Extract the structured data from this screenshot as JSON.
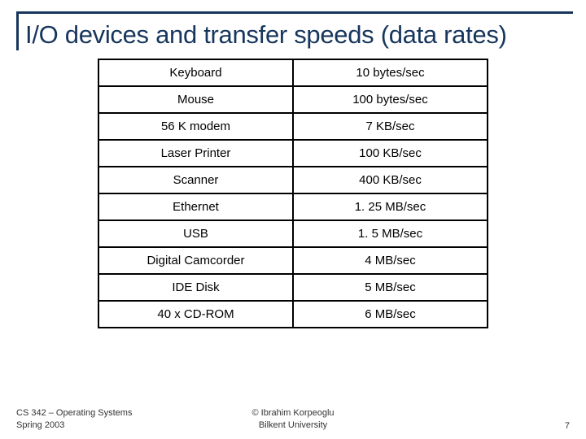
{
  "title": "I/O devices and transfer speeds (data rates)",
  "table": {
    "rows": [
      [
        "Keyboard",
        "10 bytes/sec"
      ],
      [
        "Mouse",
        "100 bytes/sec"
      ],
      [
        "56 K modem",
        "7 KB/sec"
      ],
      [
        "Laser Printer",
        "100 KB/sec"
      ],
      [
        "Scanner",
        "400 KB/sec"
      ],
      [
        "Ethernet",
        "1. 25 MB/sec"
      ],
      [
        "USB",
        "1. 5 MB/sec"
      ],
      [
        "Digital Camcorder",
        "4 MB/sec"
      ],
      [
        "IDE Disk",
        "5 MB/sec"
      ],
      [
        "40 x CD-ROM",
        "6 MB/sec"
      ]
    ],
    "border_color": "#000000",
    "cell_fontsize": 15
  },
  "footer": {
    "left_line1": "CS 342 – Operating Systems",
    "left_line2": "Spring 2003",
    "center_line1": "© Ibrahim Korpeoglu",
    "center_line2": "Bilkent University",
    "page_number": "7"
  },
  "colors": {
    "title_color": "#17365d",
    "background": "#ffffff",
    "text": "#000000"
  }
}
